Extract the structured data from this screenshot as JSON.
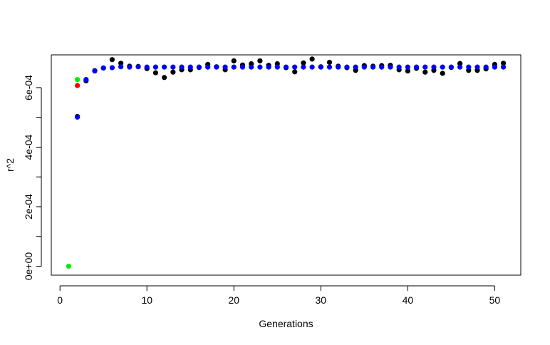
{
  "chart_data": {
    "type": "scatter",
    "title": "",
    "xlabel": "Generations",
    "ylabel": "r^2",
    "xlim": [
      -1,
      53
    ],
    "ylim": [
      -3e-05,
      0.00071
    ],
    "xticks": [
      0,
      10,
      20,
      30,
      40,
      50
    ],
    "xtick_labels": [
      "0",
      "10",
      "20",
      "30",
      "40",
      "50"
    ],
    "yticks": [
      0,
      0.0001,
      0.0002,
      0.0003,
      0.0004,
      0.0005,
      0.0006
    ],
    "ytick_labels": [
      "0e+00",
      "",
      "2e-04",
      "",
      "4e-04",
      "",
      "6e-04"
    ],
    "grid": false,
    "legend": null,
    "series": [
      {
        "color": "#000000",
        "points": [
          [
            2,
            0.000503
          ],
          [
            3,
            0.000623
          ],
          [
            4,
            0.000657
          ],
          [
            5,
            0.000666
          ],
          [
            6,
            0.000694
          ],
          [
            7,
            0.000682
          ],
          [
            8,
            0.000672
          ],
          [
            9,
            0.000671
          ],
          [
            10,
            0.000664
          ],
          [
            11,
            0.00065
          ],
          [
            12,
            0.000634
          ],
          [
            13,
            0.000652
          ],
          [
            14,
            0.00066
          ],
          [
            15,
            0.00066
          ],
          [
            16,
            0.000668
          ],
          [
            17,
            0.000678
          ],
          [
            18,
            0.00067
          ],
          [
            19,
            0.00066
          ],
          [
            20,
            0.00069
          ],
          [
            21,
            0.000676
          ],
          [
            22,
            0.00068
          ],
          [
            23,
            0.00069
          ],
          [
            24,
            0.000675
          ],
          [
            25,
            0.00068
          ],
          [
            26,
            0.000667
          ],
          [
            27,
            0.000653
          ],
          [
            28,
            0.000683
          ],
          [
            29,
            0.000696
          ],
          [
            30,
            0.00067
          ],
          [
            31,
            0.000685
          ],
          [
            32,
            0.000672
          ],
          [
            33,
            0.000667
          ],
          [
            34,
            0.000658
          ],
          [
            35,
            0.000674
          ],
          [
            36,
            0.000672
          ],
          [
            37,
            0.000674
          ],
          [
            38,
            0.000675
          ],
          [
            39,
            0.00066
          ],
          [
            40,
            0.000656
          ],
          [
            41,
            0.000665
          ],
          [
            42,
            0.000652
          ],
          [
            43,
            0.000658
          ],
          [
            44,
            0.000648
          ],
          [
            45,
            0.000668
          ],
          [
            46,
            0.000681
          ],
          [
            47,
            0.000658
          ],
          [
            48,
            0.000658
          ],
          [
            49,
            0.000663
          ],
          [
            50,
            0.000678
          ],
          [
            51,
            0.000682
          ]
        ]
      },
      {
        "color": "#ff0000",
        "points": [
          [
            2,
            0.000607
          ]
        ]
      },
      {
        "color": "#00ee00",
        "points": [
          [
            1,
            0.0
          ],
          [
            2,
            0.000627
          ]
        ]
      },
      {
        "color": "#0000ff",
        "points": [
          [
            2,
            0.000501
          ],
          [
            3,
            0.000627
          ],
          [
            4,
            0.000656
          ],
          [
            5,
            0.000666
          ],
          [
            6,
            0.000667
          ],
          [
            7,
            0.00067
          ],
          [
            8,
            0.000669
          ],
          [
            9,
            0.00067
          ],
          [
            10,
            0.000669
          ],
          [
            11,
            0.000669
          ],
          [
            12,
            0.000669
          ],
          [
            13,
            0.000669
          ],
          [
            14,
            0.000669
          ],
          [
            15,
            0.000669
          ],
          [
            16,
            0.000669
          ],
          [
            17,
            0.000669
          ],
          [
            18,
            0.000669
          ],
          [
            19,
            0.000669
          ],
          [
            20,
            0.000669
          ],
          [
            21,
            0.000669
          ],
          [
            22,
            0.000669
          ],
          [
            23,
            0.000669
          ],
          [
            24,
            0.000669
          ],
          [
            25,
            0.000669
          ],
          [
            26,
            0.000669
          ],
          [
            27,
            0.000669
          ],
          [
            28,
            0.000669
          ],
          [
            29,
            0.000669
          ],
          [
            30,
            0.000669
          ],
          [
            31,
            0.000669
          ],
          [
            32,
            0.000669
          ],
          [
            33,
            0.000669
          ],
          [
            34,
            0.000669
          ],
          [
            35,
            0.000669
          ],
          [
            36,
            0.000669
          ],
          [
            37,
            0.000669
          ],
          [
            38,
            0.000669
          ],
          [
            39,
            0.000669
          ],
          [
            40,
            0.000669
          ],
          [
            41,
            0.000669
          ],
          [
            42,
            0.000669
          ],
          [
            43,
            0.000669
          ],
          [
            44,
            0.000669
          ],
          [
            45,
            0.000669
          ],
          [
            46,
            0.000669
          ],
          [
            47,
            0.000669
          ],
          [
            48,
            0.000669
          ],
          [
            49,
            0.000669
          ],
          [
            50,
            0.000669
          ],
          [
            51,
            0.000669
          ]
        ]
      }
    ]
  }
}
